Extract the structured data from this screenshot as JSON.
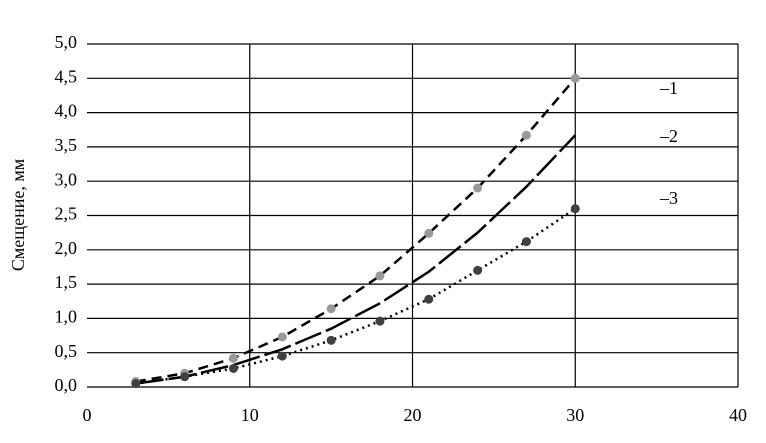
{
  "chart_data": {
    "type": "scatter-line",
    "y_label": "Смещение, мм",
    "x": [
      3,
      6,
      9,
      12,
      15,
      18,
      21,
      24,
      27,
      30
    ],
    "series": [
      {
        "name": "–1",
        "color": "#999999",
        "line_color": "#000000",
        "line_style": "dashed",
        "markers": true,
        "values": [
          0.08,
          0.2,
          0.42,
          0.73,
          1.14,
          1.62,
          2.24,
          2.9,
          3.67,
          4.5
        ]
      },
      {
        "name": "–2",
        "color": "#000000",
        "line_color": "#000000",
        "line_style": "long-dash",
        "markers": false,
        "values": [
          0.05,
          0.15,
          0.32,
          0.55,
          0.85,
          1.22,
          1.68,
          2.25,
          2.92,
          3.67
        ]
      },
      {
        "name": "–3",
        "color": "#404040",
        "line_color": "#000000",
        "line_style": "dotted",
        "markers": true,
        "values": [
          0.05,
          0.15,
          0.27,
          0.45,
          0.68,
          0.96,
          1.28,
          1.7,
          2.12,
          2.6
        ]
      }
    ],
    "xlim": [
      0,
      40
    ],
    "xticks": [
      0,
      10,
      20,
      30,
      40
    ],
    "ylim": [
      0,
      5
    ],
    "yticks": [
      {
        "value": 0,
        "label": "0,0"
      },
      {
        "value": 0.5,
        "label": "0,5"
      },
      {
        "value": 1,
        "label": "1,0"
      },
      {
        "value": 1.5,
        "label": "1,5"
      },
      {
        "value": 2,
        "label": "2,0"
      },
      {
        "value": 2.5,
        "label": "2,5"
      },
      {
        "value": 3,
        "label": "3,0"
      },
      {
        "value": 3.5,
        "label": "3,5"
      },
      {
        "value": 4,
        "label": "4,0"
      },
      {
        "value": 4.5,
        "label": "4,5"
      },
      {
        "value": 5,
        "label": "5,0"
      }
    ],
    "grid": true
  }
}
